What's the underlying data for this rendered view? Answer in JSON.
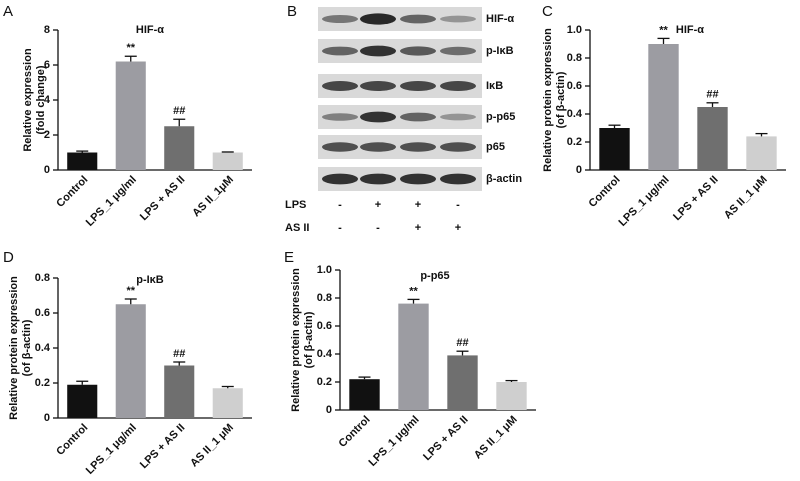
{
  "chart_data": [
    {
      "type": "bar",
      "label": "A",
      "title": "HIF-α",
      "ylabel": [
        "Relative  expression",
        "(fold change)"
      ],
      "categories": [
        "Control",
        "LPS_1 μg/ml",
        "LPS + AS II",
        "AS II_1μM"
      ],
      "values": [
        1.0,
        6.2,
        2.5,
        1.0
      ],
      "errors": [
        0.08,
        0.3,
        0.4,
        0.03
      ],
      "significance": [
        null,
        "**",
        "##",
        null
      ],
      "colors": [
        "#111111",
        "#9c9ca2",
        "#6f6f6f",
        "#cfcfcf"
      ],
      "ylim": [
        0,
        8
      ],
      "yticks": [
        0,
        2,
        4,
        6,
        8
      ]
    },
    {
      "type": "blot",
      "label": "B",
      "rows": [
        "HIF-α",
        "p-IκB",
        "IκB",
        "p-p65",
        "p65",
        "β-actin"
      ],
      "conditions": [
        {
          "name": "LPS",
          "signs": [
            "-",
            "+",
            "+",
            "-"
          ]
        },
        {
          "name": "AS II",
          "signs": [
            "-",
            "-",
            "+",
            "+"
          ]
        }
      ]
    },
    {
      "type": "bar",
      "label": "C",
      "title": "HIF-α",
      "ylabel": [
        "Relative protein expression",
        "(of β-actin)"
      ],
      "categories": [
        "Control",
        "LPS_1 μg/ml",
        "LPS + AS II",
        "AS II_1 μM"
      ],
      "values": [
        0.3,
        0.9,
        0.45,
        0.24
      ],
      "errors": [
        0.02,
        0.04,
        0.03,
        0.02
      ],
      "significance": [
        null,
        "**",
        "##",
        null
      ],
      "colors": [
        "#111111",
        "#9c9ca2",
        "#6f6f6f",
        "#cfcfcf"
      ],
      "ylim": [
        0,
        1
      ],
      "yticks": [
        0,
        0.2,
        0.4,
        0.6,
        0.8,
        {
          "value": 1,
          "label": "1.0"
        }
      ]
    },
    {
      "type": "bar",
      "label": "D",
      "title": "p-IκB",
      "ylabel": [
        "Relative protein expression",
        "(of β-actin)"
      ],
      "categories": [
        "Control",
        "LPS_1 μg/ml",
        "LPS + AS II",
        "AS II_1 μM"
      ],
      "values": [
        0.19,
        0.65,
        0.3,
        0.17
      ],
      "errors": [
        0.02,
        0.03,
        0.02,
        0.01
      ],
      "significance": [
        null,
        "**",
        "##",
        null
      ],
      "colors": [
        "#111111",
        "#9c9ca2",
        "#6f6f6f",
        "#cfcfcf"
      ],
      "ylim": [
        0,
        0.8
      ],
      "yticks": [
        0,
        0.2,
        0.4,
        0.6,
        0.8
      ]
    },
    {
      "type": "bar",
      "label": "E",
      "title": "p-p65",
      "ylabel": [
        "Relative protein expression",
        "(of β-actin)"
      ],
      "categories": [
        "Control",
        "LPS_1 μg/ml",
        "LPS + AS II",
        "AS II_1 μM"
      ],
      "values": [
        0.22,
        0.76,
        0.39,
        0.2
      ],
      "errors": [
        0.015,
        0.03,
        0.03,
        0.01
      ],
      "significance": [
        null,
        "**",
        "##",
        null
      ],
      "colors": [
        "#111111",
        "#9c9ca2",
        "#6f6f6f",
        "#cfcfcf"
      ],
      "ylim": [
        0,
        1
      ],
      "yticks": [
        0,
        0.2,
        0.4,
        0.6,
        0.8,
        {
          "value": 1,
          "label": "1.0"
        }
      ]
    }
  ]
}
